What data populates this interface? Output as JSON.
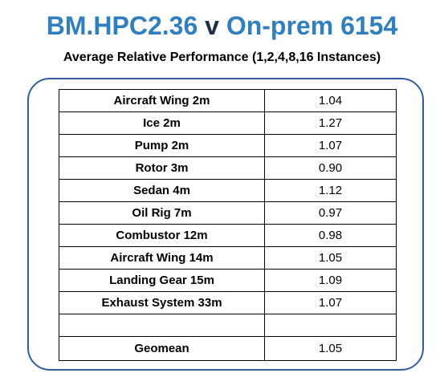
{
  "title": {
    "left": "BM.HPC2.36",
    "mid": " v ",
    "right": "On-prem 6154"
  },
  "subtitle": "Average Relative Performance  (1,2,4,8,16 Instances)",
  "colors": {
    "title_blue": "#2f7fc1",
    "title_dark": "#1c2f46",
    "frame_border": "#2f5fa0"
  },
  "chart_data": {
    "type": "table",
    "title": "BM.HPC2.36 v On-prem 6154",
    "subtitle": "Average Relative Performance  (1,2,4,8,16 Instances)",
    "rows": [
      {
        "name": "Aircraft Wing 2m",
        "value": "1.04"
      },
      {
        "name": "Ice 2m",
        "value": "1.27"
      },
      {
        "name": "Pump 2m",
        "value": "1.07"
      },
      {
        "name": "Rotor 3m",
        "value": "0.90"
      },
      {
        "name": "Sedan 4m",
        "value": "1.12"
      },
      {
        "name": "Oil Rig 7m",
        "value": "0.97"
      },
      {
        "name": "Combustor 12m",
        "value": "0.98"
      },
      {
        "name": "Aircraft Wing 14m",
        "value": "1.05"
      },
      {
        "name": "Landing Gear 15m",
        "value": "1.09"
      },
      {
        "name": "Exhaust System 33m",
        "value": "1.07"
      },
      {
        "name": "",
        "value": ""
      },
      {
        "name": "Geomean",
        "value": "1.05"
      }
    ]
  }
}
